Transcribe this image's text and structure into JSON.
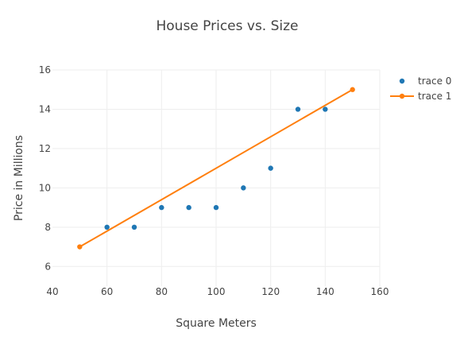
{
  "chart_data": {
    "type": "scatter",
    "title": "House Prices vs. Size",
    "xlabel": "Square Meters",
    "ylabel": "Price in Millions",
    "xlim": [
      40,
      160
    ],
    "ylim": [
      5,
      16
    ],
    "x_ticks": [
      40,
      60,
      80,
      100,
      120,
      140,
      160
    ],
    "y_ticks": [
      6,
      8,
      10,
      12,
      14,
      16
    ],
    "grid": true,
    "legend_position": "top-right",
    "series": [
      {
        "name": "trace 0",
        "mode": "markers",
        "color": "#1f77b4",
        "x": [
          60,
          70,
          80,
          90,
          100,
          110,
          120,
          130,
          140
        ],
        "y": [
          8,
          8,
          9,
          9,
          9,
          10,
          11,
          14,
          14
        ]
      },
      {
        "name": "trace 1",
        "mode": "lines+markers",
        "color": "#ff7f0e",
        "x": [
          50,
          150
        ],
        "y": [
          7,
          15
        ]
      }
    ]
  }
}
